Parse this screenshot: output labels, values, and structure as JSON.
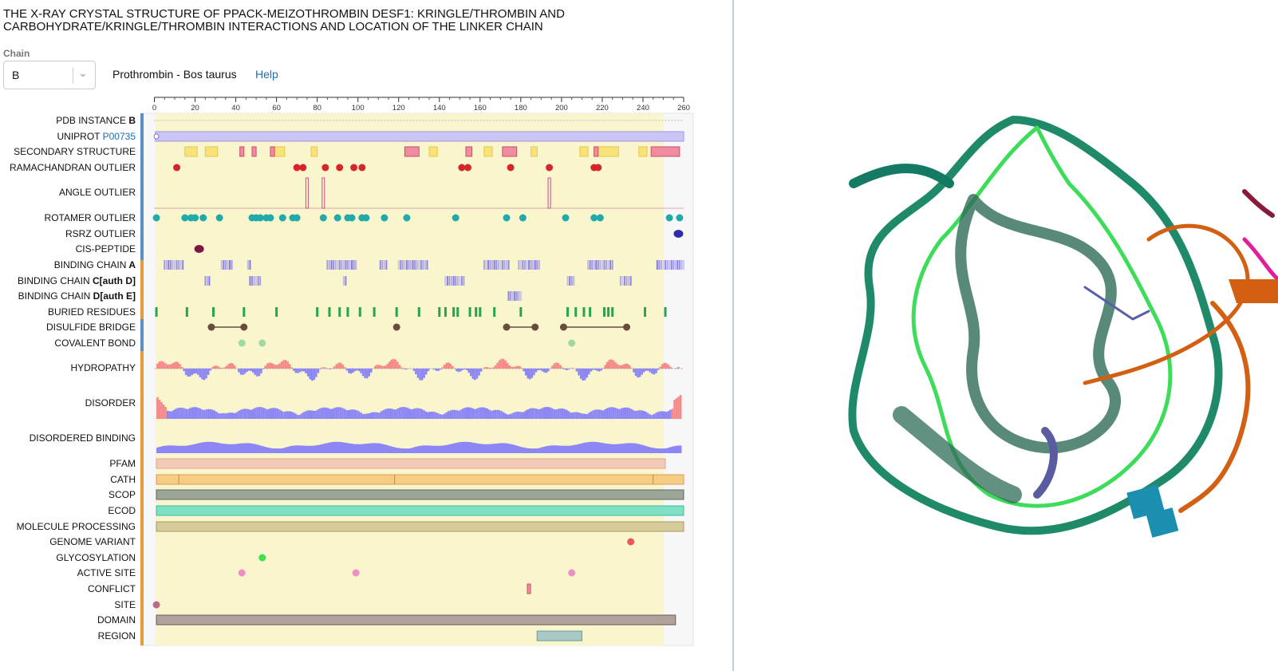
{
  "title": "THE X-RAY CRYSTAL STRUCTURE OF PPACK-MEIZOTHROMBIN DESF1: KRINGLE/THROMBIN AND CARBOHYDRATE/KRINGLE/THROMBIN INTERACTIONS AND LOCATION OF THE LINKER CHAIN",
  "chain_selector": {
    "label": "Chain",
    "value": "B"
  },
  "molecule": "Prothrombin - Bos taurus",
  "help_label": "Help",
  "axis": {
    "min": 0,
    "max": 260,
    "ticks": [
      "0",
      "20",
      "40",
      "60",
      "80",
      "100",
      "120",
      "140",
      "160",
      "180",
      "200",
      "220",
      "240",
      "260"
    ]
  },
  "tracks": {
    "pdb_instance": {
      "label": "PDB INSTANCE",
      "bold": "B"
    },
    "uniprot": {
      "label": "UNIPROT",
      "link": "P00735"
    },
    "secondary_structure": {
      "label": "SECONDARY STRUCTURE"
    },
    "ramachandran": {
      "label": "RAMACHANDRAN OUTLIER"
    },
    "angle": {
      "label": "ANGLE OUTLIER"
    },
    "rotamer": {
      "label": "ROTAMER OUTLIER"
    },
    "rsrz": {
      "label": "RSRZ OUTLIER"
    },
    "cis_peptide": {
      "label": "CIS-PEPTIDE"
    },
    "binding_a": {
      "label": "BINDING CHAIN",
      "bold": "A"
    },
    "binding_c": {
      "label": "BINDING CHAIN",
      "bold": "C[auth D]"
    },
    "binding_d": {
      "label": "BINDING CHAIN",
      "bold": "D[auth E]"
    },
    "buried": {
      "label": "BURIED RESIDUES"
    },
    "disulfide": {
      "label": "DISULFIDE BRIDGE"
    },
    "covalent": {
      "label": "COVALENT BOND"
    },
    "hydropathy": {
      "label": "HYDROPATHY"
    },
    "disorder": {
      "label": "DISORDER"
    },
    "disordered_binding": {
      "label": "DISORDERED BINDING"
    },
    "pfam": {
      "label": "PFAM"
    },
    "cath": {
      "label": "CATH"
    },
    "scop": {
      "label": "SCOP"
    },
    "ecod": {
      "label": "ECOD"
    },
    "molecule_processing": {
      "label": "MOLECULE PROCESSING"
    },
    "genome_variant": {
      "label": "GENOME VARIANT"
    },
    "glycosylation": {
      "label": "GLYCOSYLATION"
    },
    "active_site": {
      "label": "ACTIVE SITE"
    },
    "conflict": {
      "label": "CONFLICT"
    },
    "site": {
      "label": "SITE"
    },
    "domain": {
      "label": "DOMAIN"
    },
    "region": {
      "label": "REGION"
    }
  },
  "colors": {
    "highlight": "#f9f5cd",
    "helix": "#f08ca0",
    "strand": "#f8e27a",
    "outlier_red": "#d6262b",
    "rotamer": "#22a9a9",
    "rsrz": "#2b2fa8",
    "cis": "#7a1743",
    "binding": "#7d73f0",
    "buried": "#2aa44a",
    "disulfide": "#6b4b3e",
    "covalent": "#9fd8a4",
    "hydro_pos": "#f58a8a",
    "hydro_neg": "#8c87f5",
    "uniprot": "#c9c6f5",
    "pfam": "#f3c9b7",
    "cath": "#f7cd86",
    "scop": "#9aa596",
    "ecod": "#7fe0c4",
    "molecule_processing": "#d6cb9b",
    "genome_variant": "#ee5555",
    "glycosylation": "#3fe04a",
    "active_site": "#f28cc6",
    "site": "#b86a8a",
    "domain": "#b1a39c",
    "region": "#a9c9c7",
    "group_blue": "#5b8fc9",
    "group_orange": "#e59b3b"
  },
  "features": {
    "helices": [
      [
        123,
        130
      ],
      [
        153,
        156
      ],
      [
        171,
        178
      ],
      [
        216,
        218
      ],
      [
        244,
        258
      ],
      [
        42,
        44
      ],
      [
        48,
        50
      ],
      [
        57,
        59
      ]
    ],
    "strands": [
      [
        15,
        21
      ],
      [
        25,
        31
      ],
      [
        59,
        64
      ],
      [
        77,
        80
      ],
      [
        135,
        139
      ],
      [
        162,
        166
      ],
      [
        185,
        188
      ],
      [
        209,
        213
      ],
      [
        216,
        228
      ],
      [
        238,
        242
      ]
    ],
    "ramachandran": [
      11,
      70,
      73,
      84,
      91,
      98,
      102,
      151,
      154,
      175,
      194,
      216,
      218
    ],
    "angle": [
      75,
      83,
      194
    ],
    "rotamer": [
      1,
      15,
      18,
      20,
      24,
      32,
      48,
      50,
      52,
      55,
      57,
      63,
      68,
      70,
      83,
      90,
      95,
      97,
      102,
      104,
      113,
      124,
      148,
      173,
      181,
      202,
      216,
      219,
      253,
      258
    ],
    "rsrz": [
      259
    ],
    "cis_peptide": [
      22
    ],
    "binding_a": [
      [
        5,
        14
      ],
      [
        33,
        38
      ],
      [
        46,
        47
      ],
      [
        85,
        99
      ],
      [
        111,
        114
      ],
      [
        120,
        134
      ],
      [
        162,
        174
      ],
      [
        179,
        189
      ],
      [
        213,
        225
      ],
      [
        247,
        260
      ]
    ],
    "binding_c": [
      [
        25,
        27
      ],
      [
        47,
        52
      ],
      [
        93,
        94
      ],
      [
        143,
        152
      ],
      [
        203,
        206
      ],
      [
        229,
        234
      ]
    ],
    "binding_d": [
      [
        174,
        180
      ]
    ],
    "buried": [
      1,
      16,
      29,
      44,
      60,
      80,
      86,
      91,
      95,
      101,
      108,
      119,
      130,
      140,
      143,
      147,
      149,
      155,
      158,
      160,
      167,
      180,
      203,
      207,
      211,
      214,
      221,
      223,
      225,
      241,
      251
    ],
    "disulfide": [
      [
        28,
        44
      ],
      [
        119,
        119
      ],
      [
        173,
        187
      ],
      [
        201,
        232
      ]
    ],
    "covalent": [
      43,
      53,
      205
    ],
    "glycosylation": [
      53
    ],
    "active_site": [
      43,
      99,
      205
    ],
    "genome_variant": [
      234
    ],
    "conflict": [
      184
    ],
    "site": [
      1
    ],
    "region": [
      188,
      210
    ],
    "cath_boundaries": [
      12,
      118,
      245
    ],
    "highlight_end": 250
  }
}
